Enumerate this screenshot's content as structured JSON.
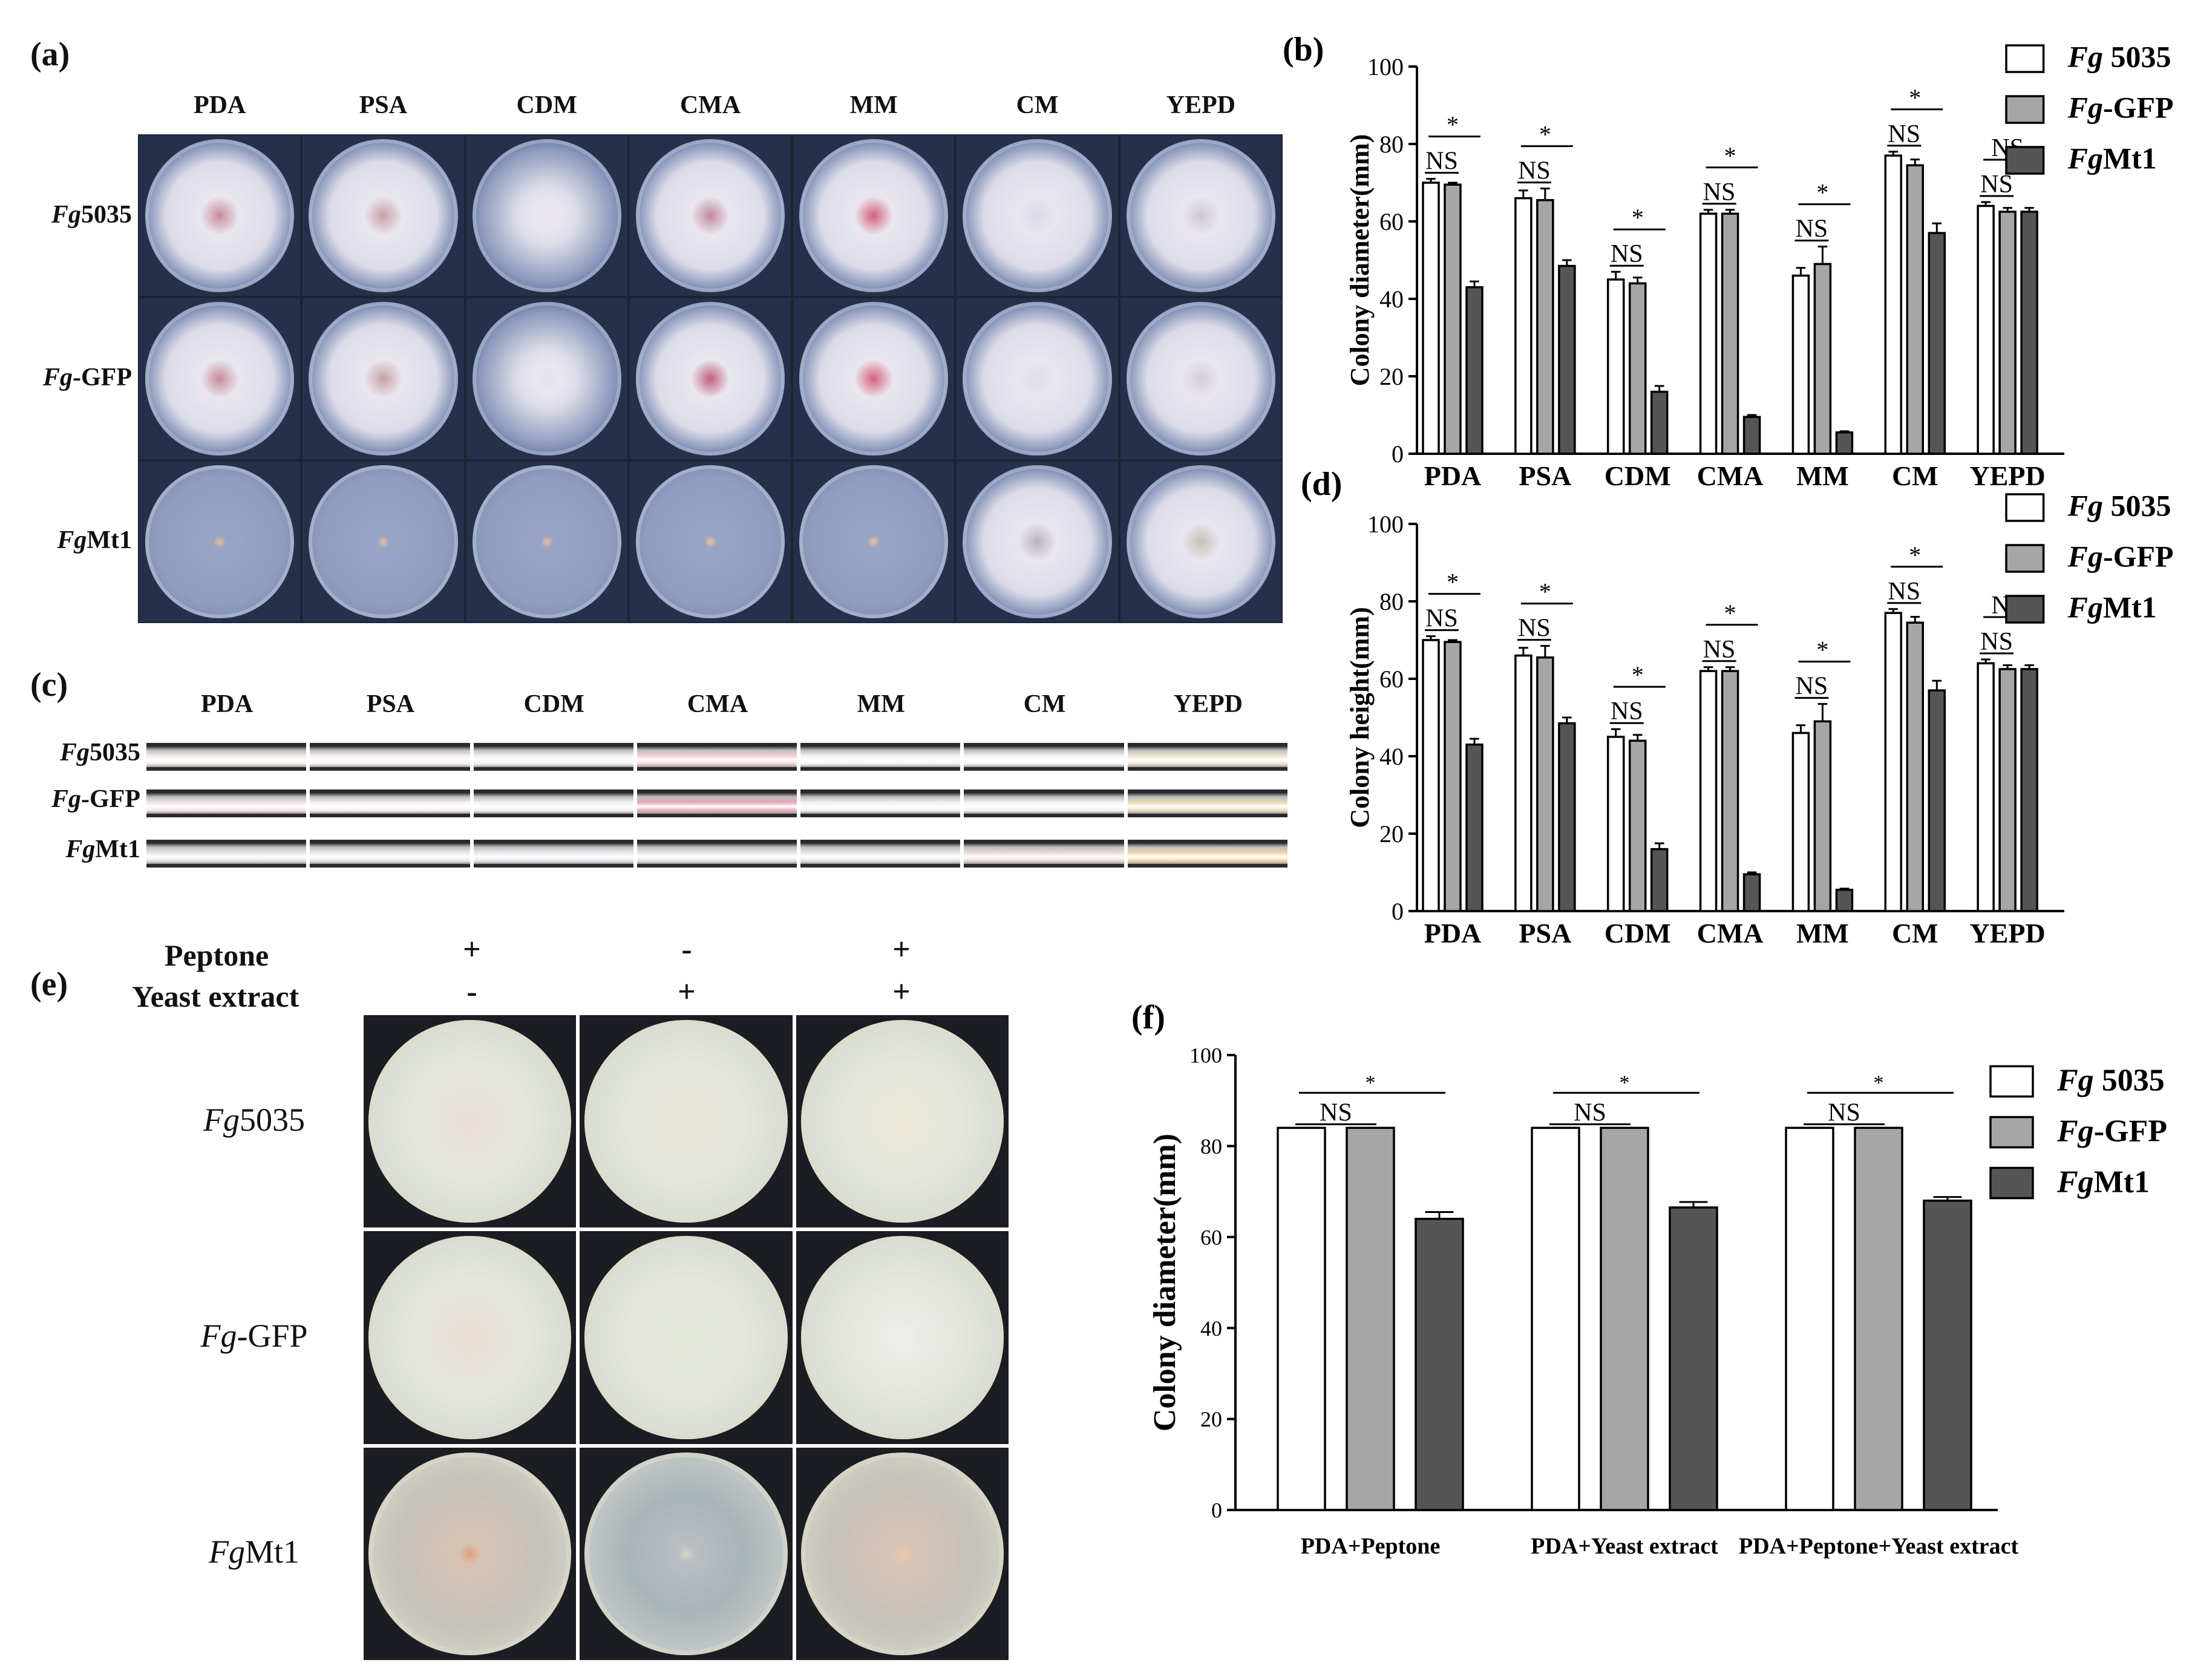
{
  "panels": {
    "a": "(a)",
    "b": "(b)",
    "c": "(c)",
    "d": "(d)",
    "e": "(e)",
    "f": "(f)"
  },
  "media": [
    "PDA",
    "PSA",
    "CDM",
    "CMA",
    "MM",
    "CM",
    "YEPD"
  ],
  "strains": [
    {
      "prefix": "Fg",
      "suffix": "5035"
    },
    {
      "prefix": "Fg",
      "suffix": "-GFP"
    },
    {
      "prefix": "Fg",
      "suffix": "Mt1"
    }
  ],
  "legend": [
    {
      "prefix": "Fg",
      "suffix": " 5035",
      "color": "#ffffff"
    },
    {
      "prefix": "Fg",
      "suffix": "-GFP",
      "color": "#a6a6a6"
    },
    {
      "prefix": "Fg",
      "suffix": "Mt1",
      "color": "#555555"
    }
  ],
  "legend_f": [
    {
      "prefix": "Fg",
      "suffix": " 5035",
      "color": "#ffffff"
    },
    {
      "prefix": "Fg",
      "suffix": "-GFP",
      "color": "#a6a6a6"
    },
    {
      "prefix": "Fg",
      "suffix": "Mt1",
      "color": "#555555"
    }
  ],
  "panel_e": {
    "peptone_label": "Peptone",
    "yeast_label": "Yeast extract",
    "peptone_signs": [
      "+",
      "-",
      "+"
    ],
    "yeast_signs": [
      "-",
      "+",
      "+"
    ]
  },
  "chart_data": [
    {
      "id": "b",
      "type": "bar",
      "ylabel": "Colony diameter(mm)",
      "ylim": [
        0,
        100
      ],
      "yticks": [
        0,
        20,
        40,
        60,
        80,
        100
      ],
      "categories": [
        "PDA",
        "PSA",
        "CDM",
        "CMA",
        "MM",
        "CM",
        "YEPD"
      ],
      "series": [
        {
          "values": [
            70,
            66,
            45,
            62,
            46,
            77,
            64
          ],
          "errors": [
            1,
            2,
            2,
            1,
            2,
            1,
            1
          ]
        },
        {
          "values": [
            69.5,
            65.5,
            44,
            62,
            49,
            74.5,
            62.5
          ],
          "errors": [
            0.5,
            3,
            1.5,
            1,
            4.5,
            1.5,
            1
          ]
        },
        {
          "values": [
            43,
            48.5,
            16,
            9.5,
            5.5,
            57,
            62.5
          ],
          "errors": [
            1.5,
            1.5,
            1.5,
            0.5,
            0.3,
            2.5,
            1
          ]
        }
      ],
      "annotations": [
        {
          "category": 0,
          "ns": "NS",
          "sig": "*"
        },
        {
          "category": 1,
          "ns": "NS",
          "sig": "*"
        },
        {
          "category": 2,
          "ns": "NS",
          "sig": "*"
        },
        {
          "category": 3,
          "ns": "NS",
          "sig": "*"
        },
        {
          "category": 4,
          "ns": "NS",
          "sig": "*"
        },
        {
          "category": 5,
          "ns": "NS",
          "sig": "*"
        },
        {
          "category": 6,
          "ns": "NS",
          "sig": "NS"
        }
      ]
    },
    {
      "id": "d",
      "type": "bar",
      "ylabel": "Colony height(mm)",
      "ylim": [
        0,
        100
      ],
      "yticks": [
        0,
        20,
        40,
        60,
        80,
        100
      ],
      "categories": [
        "PDA",
        "PSA",
        "CDM",
        "CMA",
        "MM",
        "CM",
        "YEPD"
      ],
      "series": [
        {
          "values": [
            70,
            66,
            45,
            62,
            46,
            77,
            64
          ],
          "errors": [
            1,
            2,
            2,
            1,
            2,
            1,
            1
          ]
        },
        {
          "values": [
            69.5,
            65.5,
            44,
            62,
            49,
            74.5,
            62.5
          ],
          "errors": [
            0.5,
            3,
            1.5,
            1,
            4.5,
            1.5,
            1
          ]
        },
        {
          "values": [
            43,
            48.5,
            16,
            9.5,
            5.5,
            57,
            62.5
          ],
          "errors": [
            1.5,
            1.5,
            1.5,
            0.5,
            0.3,
            2.5,
            1
          ]
        }
      ],
      "annotations": [
        {
          "category": 0,
          "ns": "NS",
          "sig": "*"
        },
        {
          "category": 1,
          "ns": "NS",
          "sig": "*"
        },
        {
          "category": 2,
          "ns": "NS",
          "sig": "*"
        },
        {
          "category": 3,
          "ns": "NS",
          "sig": "*"
        },
        {
          "category": 4,
          "ns": "NS",
          "sig": "*"
        },
        {
          "category": 5,
          "ns": "NS",
          "sig": "*"
        },
        {
          "category": 6,
          "ns": "NS",
          "sig": "NS"
        }
      ]
    },
    {
      "id": "f",
      "type": "bar",
      "ylabel": "Colony diameter(mm)",
      "ylim": [
        0,
        100
      ],
      "yticks": [
        0,
        20,
        40,
        60,
        80,
        100
      ],
      "categories": [
        "PDA+Peptone",
        "PDA+Yeast extract",
        "PDA+Peptone+Yeast extract"
      ],
      "series": [
        {
          "values": [
            84,
            84,
            84
          ],
          "errors": [
            0,
            0,
            0
          ]
        },
        {
          "values": [
            84,
            84,
            84
          ],
          "errors": [
            0,
            0,
            0
          ]
        },
        {
          "values": [
            64,
            66.5,
            68
          ],
          "errors": [
            1.5,
            1.2,
            0.8
          ]
        }
      ],
      "annotations": [
        {
          "category": 0,
          "ns": "NS",
          "sig": "*"
        },
        {
          "category": 1,
          "ns": "NS",
          "sig": "*"
        },
        {
          "category": 2,
          "ns": "NS",
          "sig": "*"
        }
      ]
    }
  ]
}
